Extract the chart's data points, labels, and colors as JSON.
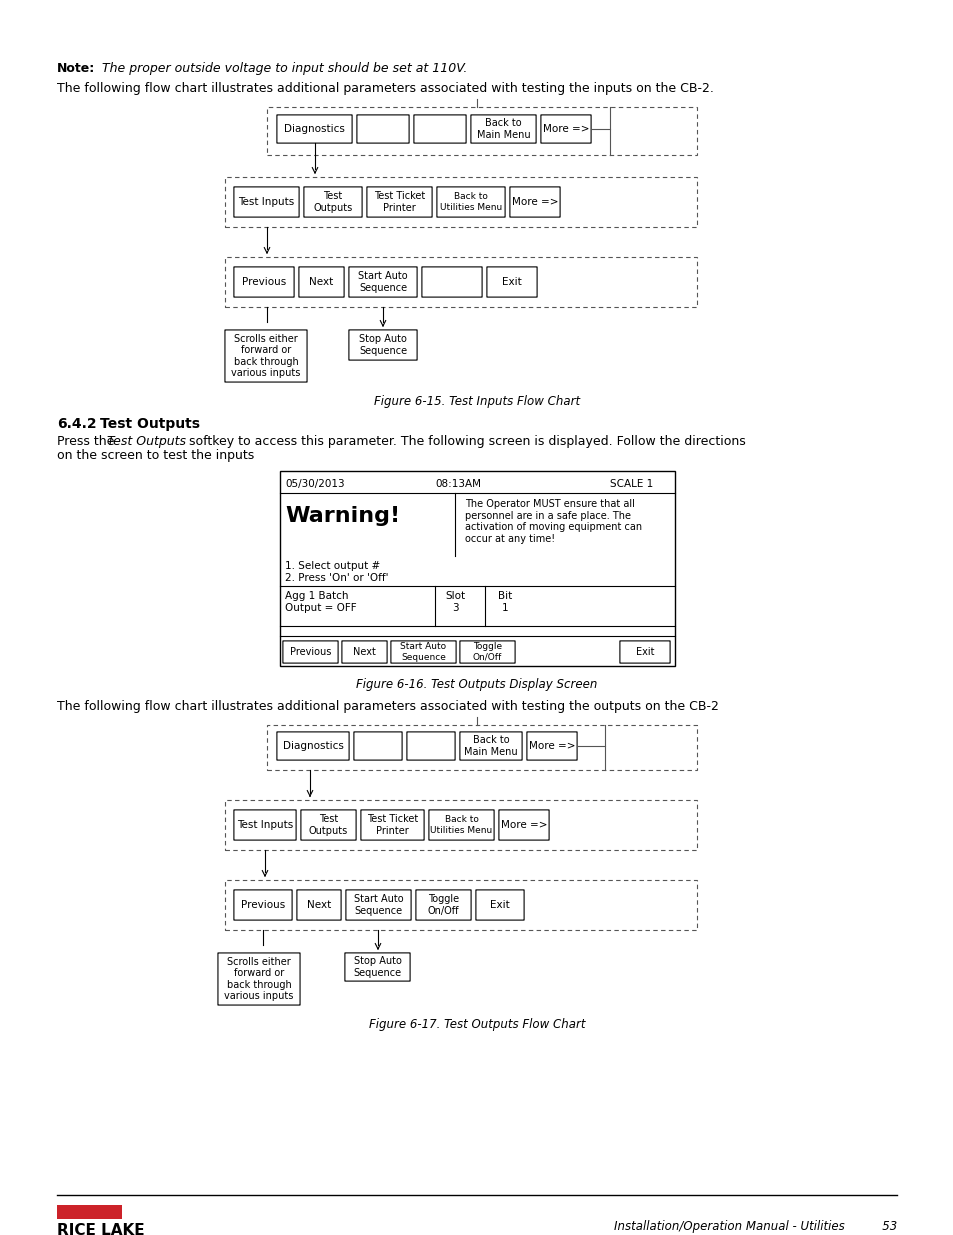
{
  "page_bg": "#ffffff",
  "note_bold": "Note:",
  "note_italic": " The proper outside voltage to input should be set at 110V.",
  "para1": "The following flow chart illustrates additional parameters associated with testing the inputs on the CB-2.",
  "fig15_caption": "Figure 6-15. Test Inputs Flow Chart",
  "section_header": "6.4.2    Test Outputs",
  "para2_part1": "Press the ",
  "para2_italic": "Test Outputs",
  "para2_part2": " softkey to access this parameter. The following screen is displayed. Follow the directions\non the screen to test the inputs",
  "fig16_caption": "Figure 6-16. Test Outputs Display Screen",
  "para3": "The following flow chart illustrates additional parameters associated with testing the outputs on the CB-2",
  "fig17_caption": "Figure 6-17. Test Outputs Flow Chart",
  "footer_right": "Installation/Operation Manual - Utilities          53",
  "red_color": "#cc2229",
  "black": "#000000",
  "gray_border": "#aaaaaa",
  "light_gray": "#dddddd"
}
